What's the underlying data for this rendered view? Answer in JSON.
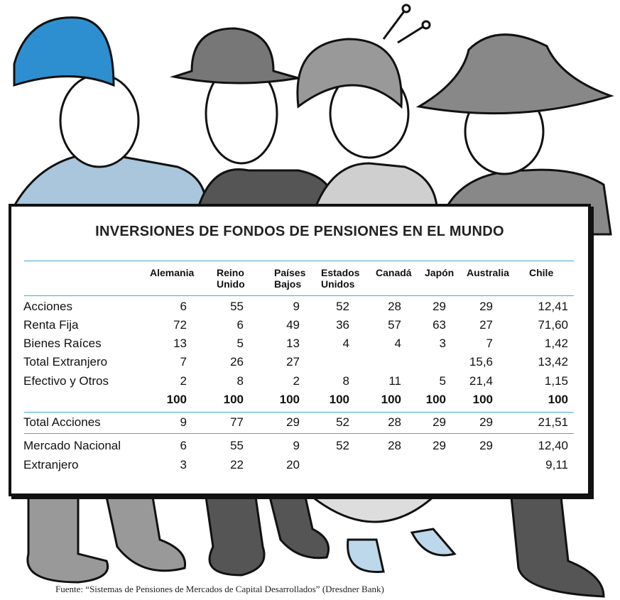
{
  "table": {
    "title": "INVERSIONES DE FONDOS DE PENSIONES EN EL MUNDO",
    "columns": [
      "Alemania",
      "Reino Unido",
      "Países Bajos",
      "Estados Unidos",
      "Canadá",
      "Japón",
      "Australia",
      "Chile"
    ],
    "rows": [
      {
        "label": "Acciones",
        "values": [
          "6",
          "55",
          "9",
          "52",
          "28",
          "29",
          "29",
          "12,41"
        ]
      },
      {
        "label": "Renta Fija",
        "values": [
          "72",
          "6",
          "49",
          "36",
          "57",
          "63",
          "27",
          "71,60"
        ]
      },
      {
        "label": "Bienes Raíces",
        "values": [
          "13",
          "5",
          "13",
          "4",
          "4",
          "3",
          "7",
          "1,42"
        ]
      },
      {
        "label": "Total Extranjero",
        "values": [
          "7",
          "26",
          "27",
          null,
          null,
          null,
          "15,6",
          "13,42"
        ]
      },
      {
        "label": "Efectivo y Otros",
        "values": [
          "2",
          "8",
          "2",
          "8",
          "11",
          "5",
          "21,4",
          "1,15"
        ]
      },
      {
        "values": [
          "100",
          "100",
          "100",
          "100",
          "100",
          "100",
          "100",
          "100"
        ]
      },
      {
        "label": "Total Acciones",
        "values": [
          "9",
          "77",
          "29",
          "52",
          "28",
          "29",
          "29",
          "21,51"
        ]
      },
      {
        "label": "Mercado Nacional",
        "values": [
          "6",
          "55",
          "9",
          "52",
          "28",
          "29",
          "29",
          "12,40"
        ]
      },
      {
        "label": "Extranjero",
        "values": [
          "3",
          "22",
          "20",
          null,
          null,
          null,
          null,
          "9,11"
        ]
      }
    ]
  },
  "source": "Fuente: “Sistemas de Pensiones de Mercados de Capital Desarrollados” (Dresdner Bank)"
}
